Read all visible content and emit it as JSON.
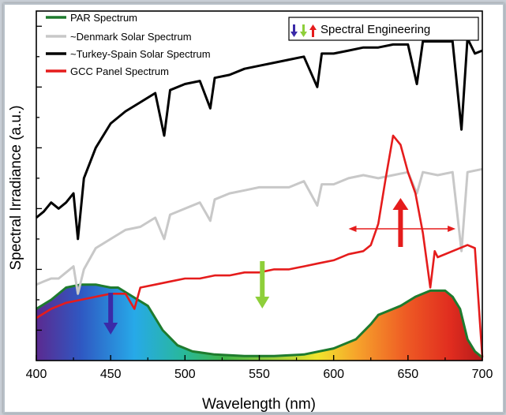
{
  "chart_data": {
    "type": "line",
    "title": "",
    "xlabel": "Wavelength (nm)",
    "ylabel": "Spectral Irradiance (a.u.)",
    "xlim": [
      400,
      700
    ],
    "ylim": [
      0,
      1.15
    ],
    "x_ticks": [
      "400",
      "450",
      "500",
      "550",
      "600",
      "650",
      "700"
    ],
    "legend_position": "top-left",
    "grid": false,
    "series": [
      {
        "name": "PAR Spectrum",
        "color": "#1e7b2e",
        "fill": "visible-spectrum-gradient",
        "points": [
          [
            400,
            0.17
          ],
          [
            410,
            0.2
          ],
          [
            420,
            0.24
          ],
          [
            430,
            0.25
          ],
          [
            440,
            0.25
          ],
          [
            450,
            0.24
          ],
          [
            455,
            0.24
          ],
          [
            465,
            0.21
          ],
          [
            475,
            0.18
          ],
          [
            485,
            0.1
          ],
          [
            495,
            0.05
          ],
          [
            505,
            0.03
          ],
          [
            520,
            0.02
          ],
          [
            540,
            0.015
          ],
          [
            560,
            0.015
          ],
          [
            580,
            0.02
          ],
          [
            600,
            0.04
          ],
          [
            615,
            0.07
          ],
          [
            625,
            0.12
          ],
          [
            630,
            0.15
          ],
          [
            635,
            0.16
          ],
          [
            645,
            0.18
          ],
          [
            655,
            0.21
          ],
          [
            665,
            0.23
          ],
          [
            675,
            0.23
          ],
          [
            680,
            0.21
          ],
          [
            685,
            0.17
          ],
          [
            690,
            0.07
          ],
          [
            695,
            0.03
          ],
          [
            700,
            0.01
          ]
        ]
      },
      {
        "name": "~Denmark Solar Spectrum",
        "color": "#c8c8c8",
        "points": [
          [
            400,
            0.25
          ],
          [
            405,
            0.26
          ],
          [
            410,
            0.27
          ],
          [
            415,
            0.27
          ],
          [
            420,
            0.29
          ],
          [
            425,
            0.31
          ],
          [
            428,
            0.22
          ],
          [
            432,
            0.3
          ],
          [
            440,
            0.37
          ],
          [
            450,
            0.4
          ],
          [
            460,
            0.43
          ],
          [
            470,
            0.44
          ],
          [
            480,
            0.47
          ],
          [
            486,
            0.4
          ],
          [
            490,
            0.48
          ],
          [
            500,
            0.5
          ],
          [
            510,
            0.52
          ],
          [
            517,
            0.46
          ],
          [
            520,
            0.53
          ],
          [
            530,
            0.55
          ],
          [
            540,
            0.56
          ],
          [
            550,
            0.57
          ],
          [
            560,
            0.57
          ],
          [
            570,
            0.57
          ],
          [
            580,
            0.59
          ],
          [
            589,
            0.51
          ],
          [
            592,
            0.58
          ],
          [
            600,
            0.58
          ],
          [
            610,
            0.6
          ],
          [
            620,
            0.61
          ],
          [
            630,
            0.6
          ],
          [
            640,
            0.61
          ],
          [
            650,
            0.62
          ],
          [
            656,
            0.55
          ],
          [
            660,
            0.62
          ],
          [
            670,
            0.61
          ],
          [
            680,
            0.62
          ],
          [
            686,
            0.36
          ],
          [
            690,
            0.62
          ],
          [
            700,
            0.63
          ]
        ]
      },
      {
        "name": "~Turkey-Spain Solar Spectrum",
        "color": "#000000",
        "points": [
          [
            400,
            0.47
          ],
          [
            405,
            0.49
          ],
          [
            410,
            0.52
          ],
          [
            415,
            0.5
          ],
          [
            420,
            0.52
          ],
          [
            425,
            0.55
          ],
          [
            428,
            0.4
          ],
          [
            432,
            0.6
          ],
          [
            440,
            0.7
          ],
          [
            450,
            0.78
          ],
          [
            460,
            0.82
          ],
          [
            470,
            0.85
          ],
          [
            480,
            0.88
          ],
          [
            486,
            0.74
          ],
          [
            490,
            0.89
          ],
          [
            500,
            0.91
          ],
          [
            510,
            0.92
          ],
          [
            517,
            0.83
          ],
          [
            520,
            0.93
          ],
          [
            530,
            0.94
          ],
          [
            540,
            0.96
          ],
          [
            550,
            0.97
          ],
          [
            560,
            0.98
          ],
          [
            570,
            0.99
          ],
          [
            580,
            1.0
          ],
          [
            589,
            0.9
          ],
          [
            592,
            1.01
          ],
          [
            600,
            1.01
          ],
          [
            610,
            1.02
          ],
          [
            620,
            1.03
          ],
          [
            630,
            1.03
          ],
          [
            640,
            1.04
          ],
          [
            650,
            1.04
          ],
          [
            656,
            0.91
          ],
          [
            660,
            1.05
          ],
          [
            670,
            1.05
          ],
          [
            680,
            1.05
          ],
          [
            686,
            0.76
          ],
          [
            690,
            1.06
          ],
          [
            695,
            1.01
          ],
          [
            700,
            1.02
          ]
        ]
      },
      {
        "name": "GCC Panel Spectrum",
        "color": "#e51c1c",
        "points": [
          [
            400,
            0.14
          ],
          [
            410,
            0.17
          ],
          [
            420,
            0.19
          ],
          [
            430,
            0.2
          ],
          [
            440,
            0.21
          ],
          [
            450,
            0.22
          ],
          [
            460,
            0.22
          ],
          [
            466,
            0.17
          ],
          [
            470,
            0.24
          ],
          [
            480,
            0.25
          ],
          [
            490,
            0.26
          ],
          [
            500,
            0.27
          ],
          [
            510,
            0.27
          ],
          [
            520,
            0.28
          ],
          [
            530,
            0.28
          ],
          [
            540,
            0.29
          ],
          [
            550,
            0.29
          ],
          [
            560,
            0.3
          ],
          [
            570,
            0.3
          ],
          [
            580,
            0.31
          ],
          [
            590,
            0.32
          ],
          [
            600,
            0.33
          ],
          [
            610,
            0.35
          ],
          [
            620,
            0.36
          ],
          [
            625,
            0.38
          ],
          [
            630,
            0.45
          ],
          [
            635,
            0.6
          ],
          [
            640,
            0.74
          ],
          [
            645,
            0.71
          ],
          [
            650,
            0.62
          ],
          [
            655,
            0.55
          ],
          [
            660,
            0.42
          ],
          [
            665,
            0.24
          ],
          [
            668,
            0.36
          ],
          [
            670,
            0.34
          ],
          [
            680,
            0.36
          ],
          [
            690,
            0.38
          ],
          [
            695,
            0.37
          ],
          [
            700,
            0.01
          ]
        ]
      }
    ],
    "annotations": [
      {
        "text": "Spectral Engineering",
        "position": "top-right box"
      },
      {
        "type": "arrow",
        "direction": "down",
        "color": "#3a2aa8",
        "x": 450
      },
      {
        "type": "arrow",
        "direction": "down",
        "color": "#8ecf3a",
        "x": 552
      },
      {
        "type": "arrow",
        "direction": "up",
        "color": "#e51c1c",
        "x": 645
      },
      {
        "type": "double-arrow",
        "direction": "left-right",
        "color": "#e51c1c",
        "x_range": [
          610,
          682
        ]
      }
    ]
  }
}
